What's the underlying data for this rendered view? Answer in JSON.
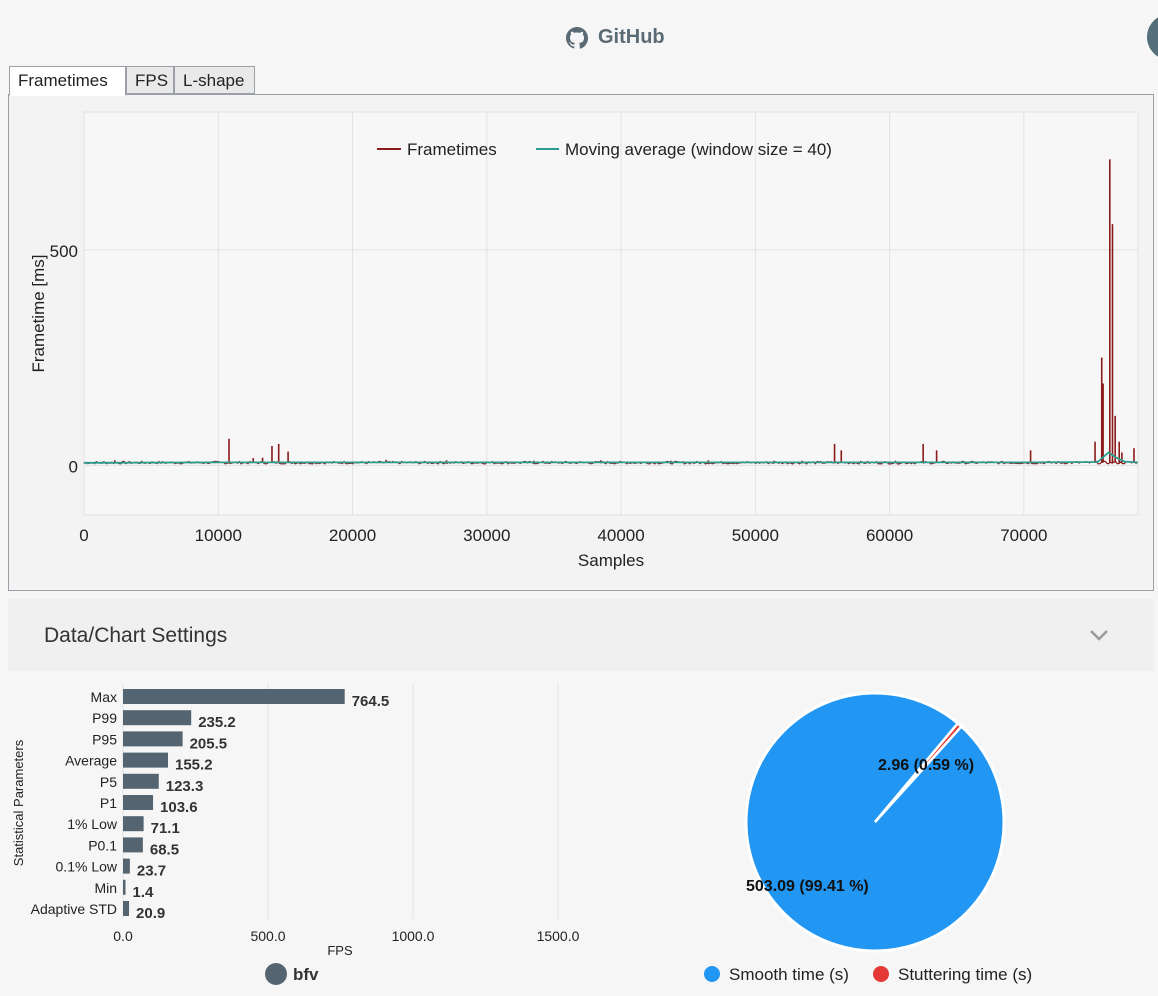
{
  "header": {
    "github_label": "GitHub"
  },
  "tabs": [
    {
      "label": "Frametimes",
      "active": true
    },
    {
      "label": "FPS",
      "active": false
    },
    {
      "label": "L-shape",
      "active": false
    }
  ],
  "settings": {
    "title": "Data/Chart Settings"
  },
  "colors": {
    "frametimes": "#8b1a1a",
    "moving_average": "#2a9d8f",
    "bar": "#546470",
    "smooth": "#2196f3",
    "stutter": "#e53935",
    "bfv_dot": "#546470"
  },
  "chart_data": [
    {
      "type": "line",
      "xlabel": "Samples",
      "ylabel": "Frametime [ms]",
      "xlim": [
        0,
        78500
      ],
      "ylim": [
        -115,
        820
      ],
      "xticks": [
        0,
        10000,
        20000,
        30000,
        40000,
        50000,
        60000,
        70000
      ],
      "yticks": [
        0,
        500
      ],
      "grid": true,
      "legend_position": "top-center",
      "series": [
        {
          "name": "Frametimes",
          "baseline": 6.5,
          "spikes": [
            [
              2300,
              12
            ],
            [
              10800,
              62
            ],
            [
              12600,
              17
            ],
            [
              13300,
              18
            ],
            [
              14000,
              45
            ],
            [
              14500,
              50
            ],
            [
              15200,
              32
            ],
            [
              22500,
              13
            ],
            [
              27000,
              12
            ],
            [
              33500,
              11
            ],
            [
              38500,
              12
            ],
            [
              43700,
              11
            ],
            [
              46500,
              12
            ],
            [
              51400,
              11
            ],
            [
              53500,
              11
            ],
            [
              55900,
              50
            ],
            [
              56400,
              35
            ],
            [
              62500,
              50
            ],
            [
              63500,
              35
            ],
            [
              70500,
              35
            ],
            [
              75300,
              55
            ],
            [
              75800,
              250
            ],
            [
              75900,
              190
            ],
            [
              76400,
              710
            ],
            [
              76600,
              560
            ],
            [
              76800,
              115
            ],
            [
              77100,
              55
            ],
            [
              77300,
              30
            ],
            [
              78200,
              40
            ]
          ]
        },
        {
          "name": "Moving average (window size = 40)",
          "baseline": 6.5,
          "points": [
            [
              0,
              6
            ],
            [
              10000,
              7
            ],
            [
              20000,
              7
            ],
            [
              30000,
              7
            ],
            [
              40000,
              7
            ],
            [
              50000,
              7
            ],
            [
              60000,
              7
            ],
            [
              70000,
              7
            ],
            [
              75500,
              8
            ],
            [
              76300,
              30
            ],
            [
              76900,
              18
            ],
            [
              77500,
              9
            ],
            [
              78500,
              7
            ]
          ]
        }
      ]
    },
    {
      "type": "bar",
      "orientation": "horizontal",
      "xlabel": "FPS",
      "ylabel": "Statistical Parameters",
      "xlim": [
        0,
        1600
      ],
      "xticks": [
        "0.0",
        "500.0",
        "1000.0",
        "1500.0"
      ],
      "xtick_values": [
        0,
        500,
        1000,
        1500
      ],
      "categories": [
        "Max",
        "P99",
        "P95",
        "Average",
        "P5",
        "P1",
        "1% Low",
        "P0.1",
        "0.1% Low",
        "Min",
        "Adaptive STD"
      ],
      "values": [
        764.5,
        235.2,
        205.5,
        155.2,
        123.3,
        103.6,
        71.1,
        68.5,
        23.7,
        1.4,
        20.9
      ],
      "value_labels": [
        "764.5",
        "235.2",
        "205.5",
        "155.2",
        "123.3",
        "103.6",
        "71.1",
        "68.5",
        "23.7",
        "1.4",
        "20.9"
      ],
      "legend": [
        "bfv"
      ]
    },
    {
      "type": "pie",
      "slices": [
        {
          "name": "Smooth time (s)",
          "value": 503.09,
          "label": "503.09 (99.41 %)"
        },
        {
          "name": "Stuttering time (s)",
          "value": 2.96,
          "label": "2.96 (0.59 %)"
        }
      ],
      "legend": [
        "Smooth time (s)",
        "Stuttering time (s)"
      ]
    }
  ]
}
